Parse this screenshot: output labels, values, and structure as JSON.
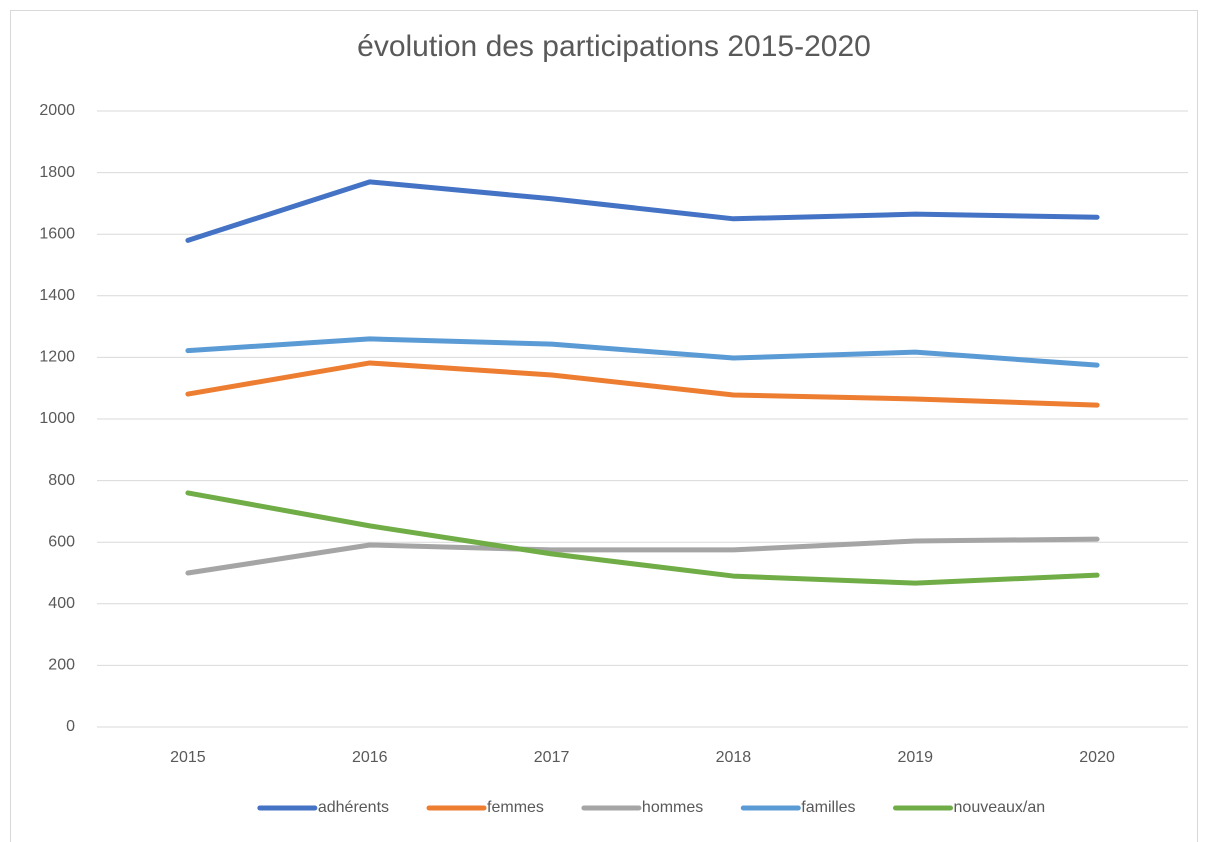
{
  "chart_data": {
    "type": "line",
    "title": "évolution des participations 2015-2020",
    "categories": [
      "2015",
      "2016",
      "2017",
      "2018",
      "2019",
      "2020"
    ],
    "series": [
      {
        "name": "adhérents",
        "color": "#4472c4",
        "values": [
          1580,
          1770,
          1715,
          1650,
          1665,
          1655
        ]
      },
      {
        "name": "femmes",
        "color": "#ed7d31",
        "values": [
          1081,
          1182,
          1143,
          1078,
          1065,
          1045
        ]
      },
      {
        "name": "hommes",
        "color": "#a5a5a5",
        "values": [
          500,
          591,
          575,
          575,
          604,
          610
        ]
      },
      {
        "name": "familles",
        "color": "#5b9bd5",
        "values": [
          1222,
          1260,
          1243,
          1198,
          1217,
          1175
        ]
      },
      {
        "name": "nouveaux/an",
        "color": "#70ad47",
        "values": [
          760,
          653,
          562,
          490,
          467,
          493
        ]
      }
    ],
    "ylim": [
      0,
      2000
    ],
    "yticks": [
      0,
      200,
      400,
      600,
      800,
      1000,
      1200,
      1400,
      1600,
      1800,
      2000
    ],
    "grid": true,
    "legend": "bottom"
  }
}
